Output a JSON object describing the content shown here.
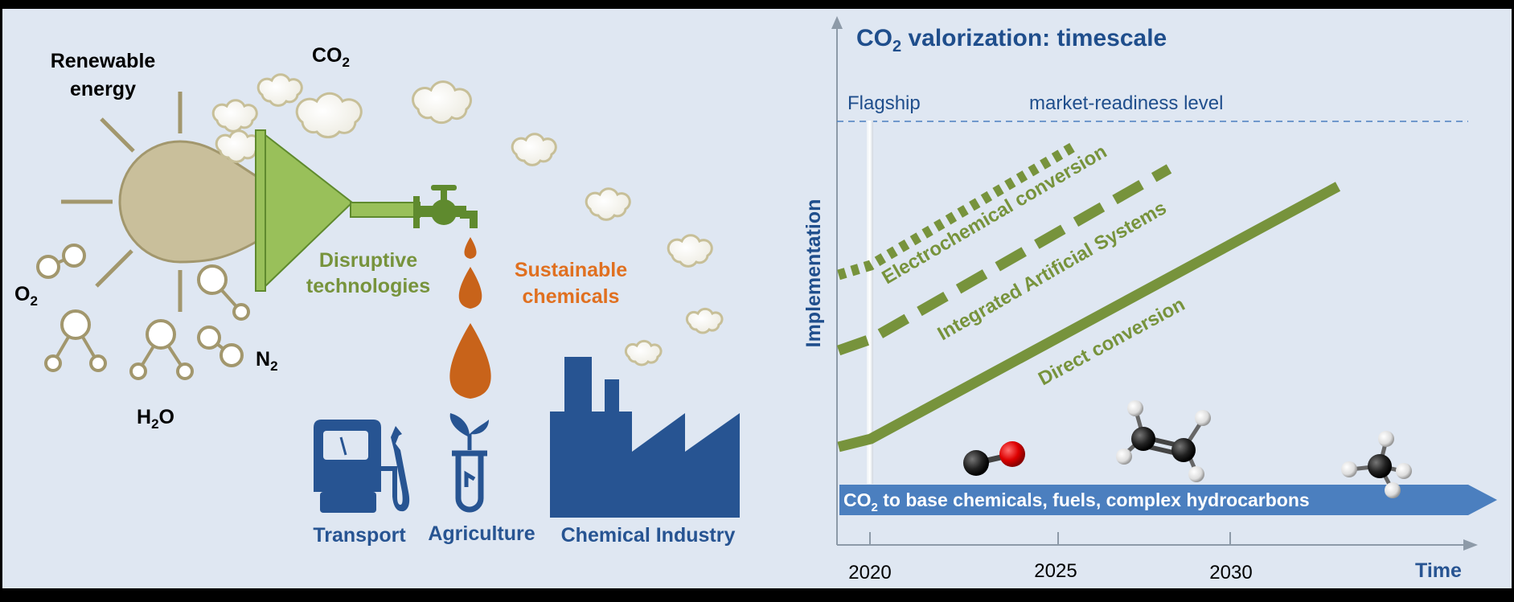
{
  "colors": {
    "frame": "#000000",
    "background": "#dfe7f2",
    "sun": "#c9bf9b",
    "sun_ray": "#a2976d",
    "funnel_green": "#99c05a",
    "tap_green": "#5f8a2e",
    "drop_orange": "#c8631a",
    "industry_blue": "#275492",
    "arrow_blue": "#4b7fbf",
    "line_green": "#77933c",
    "title_blue": "#1f4e8c",
    "axis_gray": "#8d9aa8"
  },
  "left": {
    "renewable_line1": "Renewable",
    "renewable_line2": "energy",
    "co2": {
      "main": "CO",
      "sub": "2"
    },
    "o2": {
      "main": "O",
      "sub": "2"
    },
    "h2o": {
      "pre": "H",
      "sub": "2",
      "post": "O"
    },
    "n2": {
      "main": "N",
      "sub": "2"
    },
    "disruptive_line1": "Disruptive",
    "disruptive_line2": "technologies",
    "sustainable_line1": "Sustainable",
    "sustainable_line2": "chemicals",
    "transport": "Transport",
    "agriculture": "Agriculture",
    "chemical_industry": "Chemical Industry"
  },
  "right": {
    "title": {
      "main": "CO",
      "sub": "2",
      "rest": " valorization: timescale"
    },
    "flagship": "Flagship",
    "market_readiness": "market-readiness level",
    "y_axis_label": "Implementation",
    "x_axis_label": "Time",
    "ticks": [
      "2020",
      "2025",
      "2030"
    ],
    "lines": [
      {
        "label": "Electrochemical conversion",
        "style": "dotted"
      },
      {
        "label": "Integrated Artificial Systems",
        "style": "dashed"
      },
      {
        "label": "Direct conversion",
        "style": "solid"
      }
    ],
    "arrow_text": {
      "main": "CO",
      "sub": "2",
      "rest": " to base chemicals, fuels, complex hydrocarbons"
    },
    "molecules": [
      "carbon-monoxide",
      "ethylene",
      "methane"
    ]
  }
}
